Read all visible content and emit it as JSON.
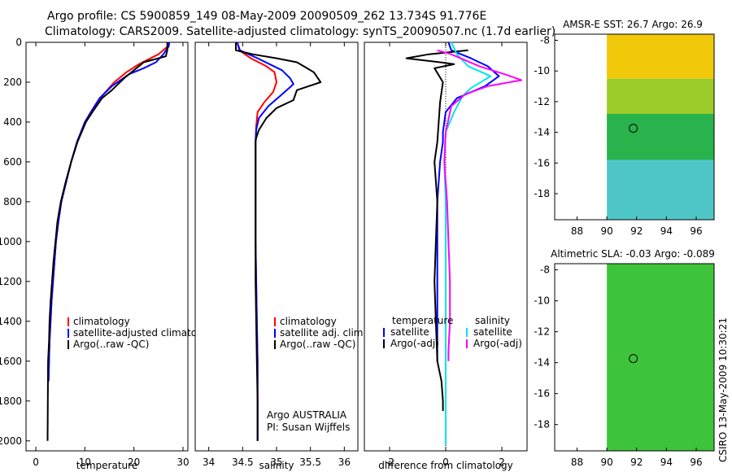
{
  "header": {
    "line1": "Argo profile: CS 5900859_149 08-May-2009 20090509_262 13.734S 91.776E",
    "line2": "Climatology: CARS2009. Satellite-adjusted climatology: synTS_20090507.nc (1.7d earlier)"
  },
  "footer": {
    "stamp": "CSIRO 13-May-2009 10:30:21"
  },
  "chart_data": [
    {
      "id": "temperature",
      "type": "line",
      "xlabel": "temperature",
      "ylabel": "",
      "xlim": [
        -2,
        31
      ],
      "ylim": [
        2050,
        0
      ],
      "xticks": [
        0,
        10,
        20,
        30
      ],
      "yticks": [
        0,
        200,
        400,
        600,
        800,
        1000,
        1200,
        1400,
        1600,
        1800,
        2000
      ],
      "legend": [
        {
          "label": "climatology",
          "color": "#ff0000"
        },
        {
          "label": "satellite-adjusted climatology",
          "color": "#0000ff"
        },
        {
          "label": "Argo(..raw -QC)",
          "color": "#000000"
        }
      ],
      "series": [
        {
          "name": "climatology",
          "color": "#ff0000",
          "x": [
            27.0,
            26.9,
            25,
            21,
            18.5,
            16,
            14.2,
            12.5,
            11.2,
            10,
            8.4,
            7.2,
            6.2,
            5.2,
            4.6,
            4.1,
            3.8,
            3.5,
            3.2,
            3.0,
            2.8,
            2.7,
            2.6
          ],
          "y": [
            0,
            20,
            60,
            110,
            150,
            200,
            250,
            300,
            350,
            400,
            500,
            600,
            700,
            800,
            900,
            1000,
            1100,
            1200,
            1300,
            1400,
            1500,
            1600,
            1700
          ]
        },
        {
          "name": "satellite-adjusted climatology",
          "color": "#0000ff",
          "x": [
            27.2,
            27.1,
            26,
            24.5,
            22,
            19,
            15.5,
            13,
            11.5,
            10,
            8.4,
            7.2,
            6.2,
            5.2,
            4.6,
            4.1,
            3.8,
            3.5,
            3.2,
            3.0,
            2.8,
            2.7,
            2.6
          ],
          "y": [
            0,
            20,
            60,
            100,
            130,
            160,
            220,
            280,
            340,
            400,
            500,
            600,
            700,
            800,
            900,
            1000,
            1100,
            1200,
            1300,
            1400,
            1500,
            1600,
            1700
          ]
        },
        {
          "name": "Argo(..raw -QC)",
          "color": "#000000",
          "x": [
            26.8,
            26.8,
            26.5,
            22,
            20,
            18,
            15.5,
            13.5,
            11.8,
            10.2,
            8.5,
            7.2,
            6.1,
            5.1,
            4.4,
            4.0,
            3.6,
            3.3,
            3.0,
            2.8,
            2.7,
            2.5,
            2.45,
            2.4
          ],
          "y": [
            0,
            40,
            70,
            100,
            140,
            180,
            240,
            280,
            340,
            400,
            500,
            600,
            700,
            800,
            900,
            1000,
            1100,
            1200,
            1300,
            1400,
            1500,
            1600,
            1800,
            2000
          ]
        }
      ]
    },
    {
      "id": "salinity",
      "type": "line",
      "xlabel": "salinity",
      "ylabel": "",
      "xlim": [
        33.8,
        36.2
      ],
      "ylim": [
        2050,
        0
      ],
      "xticks": [
        34,
        34.5,
        35,
        35.5,
        36
      ],
      "yticks": [],
      "legend": [
        {
          "label": "climatology",
          "color": "#ff0000"
        },
        {
          "label": "satellite adj. clim.",
          "color": "#0000ff"
        },
        {
          "label": "Argo(..raw -QC)",
          "color": "#000000"
        }
      ],
      "annotation": [
        "Argo AUSTRALIA",
        "PI: Susan Wijffels"
      ],
      "series": [
        {
          "name": "climatology",
          "color": "#ff0000",
          "x": [
            34.42,
            34.45,
            34.62,
            34.85,
            34.97,
            35.0,
            34.95,
            34.82,
            34.72,
            34.7,
            34.69,
            34.69,
            34.69,
            34.69,
            34.7,
            34.71,
            34.72,
            34.72,
            34.72,
            34.72
          ],
          "y": [
            0,
            40,
            80,
            120,
            150,
            200,
            250,
            300,
            350,
            420,
            500,
            600,
            800,
            1000,
            1200,
            1400,
            1600,
            1800,
            1950,
            2000
          ]
        },
        {
          "name": "satellite adj. clim.",
          "color": "#0000ff",
          "x": [
            34.42,
            34.46,
            34.72,
            35.08,
            35.2,
            35.25,
            35.05,
            34.88,
            34.74,
            34.7,
            34.69,
            34.69,
            34.69,
            34.69,
            34.7,
            34.71,
            34.72,
            34.72,
            34.72,
            34.72
          ],
          "y": [
            0,
            40,
            80,
            140,
            180,
            210,
            270,
            320,
            380,
            440,
            500,
            600,
            800,
            1000,
            1200,
            1400,
            1600,
            1800,
            1950,
            2000
          ]
        },
        {
          "name": "Argo(..raw -QC)",
          "color": "#000000",
          "x": [
            34.4,
            34.4,
            34.65,
            35.0,
            35.3,
            35.55,
            35.65,
            35.3,
            35.25,
            35.0,
            34.85,
            34.74,
            34.7,
            34.69,
            34.69,
            34.69,
            34.69,
            34.69,
            34.7,
            34.71,
            34.72,
            34.72
          ],
          "y": [
            0,
            40,
            60,
            80,
            100,
            150,
            200,
            240,
            290,
            330,
            380,
            440,
            480,
            500,
            600,
            800,
            1000,
            1200,
            1400,
            1600,
            1800,
            2000
          ]
        }
      ]
    },
    {
      "id": "difference",
      "type": "line",
      "xlabel": "difference from climatology",
      "ylabel": "",
      "xlim": [
        -2.9,
        2.9
      ],
      "ylim": [
        2050,
        0
      ],
      "xticks": [
        -2,
        0,
        2
      ],
      "yticks": [],
      "legend": [
        {
          "label": "temperature",
          "color": ""
        },
        {
          "label": "satellite",
          "color": "#0000ff"
        },
        {
          "label": "Argo(-adj)",
          "color": "#000000"
        },
        {
          "label": "salinity",
          "color": ""
        },
        {
          "label": "satellite",
          "color": "#00e5ee"
        },
        {
          "label": "Argo(-adj)",
          "color": "#ff00ff"
        }
      ],
      "series": [
        {
          "name": "temperature satellite",
          "color": "#0000ff",
          "x": [
            0.1,
            0.2,
            0.9,
            1.5,
            1.9,
            1.4,
            0.4,
            0.0,
            -0.1,
            -0.1,
            -0.2,
            -0.3,
            -0.3,
            -0.3,
            -0.3,
            -0.3,
            -0.3
          ],
          "y": [
            0,
            40,
            80,
            120,
            170,
            220,
            280,
            350,
            450,
            500,
            600,
            800,
            1000,
            1200,
            1400,
            1550,
            1600
          ]
        },
        {
          "name": "temperature Argo(-adj)",
          "color": "#000000",
          "x": [
            0.8,
            -0.6,
            -1.4,
            -0.2,
            0.3,
            -0.4,
            -0.1,
            -0.2,
            -0.3,
            -0.4,
            -0.3,
            -0.35,
            -0.4,
            -0.35,
            -0.3,
            -0.15,
            -0.1,
            -0.1
          ],
          "y": [
            40,
            60,
            80,
            100,
            110,
            130,
            200,
            300,
            500,
            600,
            800,
            1000,
            1200,
            1400,
            1600,
            1700,
            1800,
            1850
          ]
        },
        {
          "name": "salinity satellite",
          "color": "#00e5ee",
          "x": [
            0.2,
            0.4,
            0.8,
            1.6,
            0.9,
            0.6,
            0.3,
            0.0,
            -0.05,
            0.0,
            0.0,
            0.0,
            0.0,
            0.0,
            0.0,
            0.0,
            0.0
          ],
          "y": [
            0,
            60,
            120,
            170,
            230,
            270,
            350,
            450,
            600,
            800,
            1000,
            1200,
            1400,
            1600,
            1800,
            1950,
            2020
          ]
        },
        {
          "name": "salinity Argo(-adj)",
          "color": "#ff00ff",
          "x": [
            -0.3,
            0.2,
            1.2,
            2.1,
            2.7,
            1.5,
            0.7,
            0.2,
            0.0,
            -0.05,
            0.05,
            0.1,
            0.15,
            0.15,
            0.1,
            0.1
          ],
          "y": [
            40,
            60,
            120,
            160,
            190,
            220,
            260,
            320,
            450,
            600,
            800,
            1000,
            1200,
            1400,
            1550,
            1600
          ]
        }
      ]
    },
    {
      "id": "sst-map",
      "type": "heatmap",
      "title": "AMSR-E SST: 26.7  Argo: 26.9",
      "xlim": [
        86.5,
        97.2
      ],
      "ylim": [
        -19.7,
        -7.6
      ],
      "xticks": [
        88,
        90,
        92,
        94,
        96
      ],
      "yticks": [
        -8,
        -10,
        -12,
        -14,
        -16,
        -18
      ],
      "data_extent_lon": [
        90,
        97.2
      ],
      "marker": {
        "lon": 91.776,
        "lat": -13.734
      },
      "bands": [
        {
          "lat_from": -7.6,
          "lat_to": -10.5,
          "color": "#f2c80a"
        },
        {
          "lat_from": -10.5,
          "lat_to": -12.8,
          "color": "#9ccc2a"
        },
        {
          "lat_from": -12.8,
          "lat_to": -15.8,
          "color": "#29b34d"
        },
        {
          "lat_from": -15.8,
          "lat_to": -19.7,
          "color": "#4fc7c9"
        }
      ]
    },
    {
      "id": "sla-map",
      "type": "heatmap",
      "title": "Altimetric SLA: -0.03  Argo: -0.089",
      "xlim": [
        86.5,
        97.2
      ],
      "ylim": [
        -19.7,
        -7.6
      ],
      "xticks": [
        88,
        90,
        92,
        94,
        96
      ],
      "yticks": [
        -8,
        -10,
        -12,
        -14,
        -16,
        -18
      ],
      "data_extent_lon": [
        90,
        97.2
      ],
      "marker": {
        "lon": 91.776,
        "lat": -13.734
      },
      "bands": [
        {
          "lat_from": -7.6,
          "lat_to": -19.7,
          "color": "#3dc43a"
        }
      ]
    }
  ]
}
